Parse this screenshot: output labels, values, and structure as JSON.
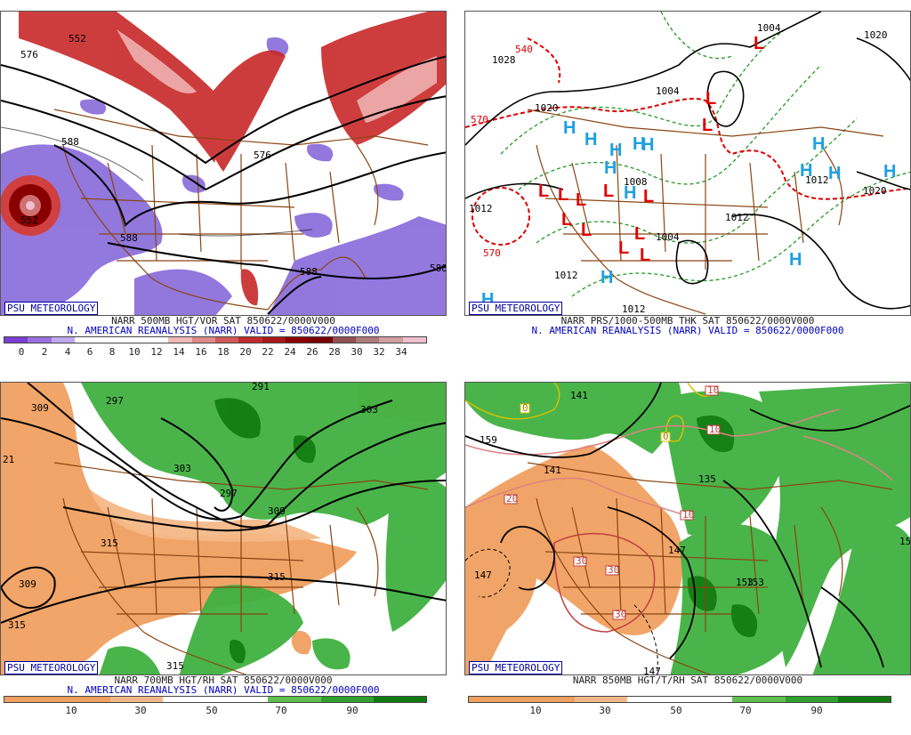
{
  "panels": [
    {
      "badge": "PSU METEOROLOGY",
      "line1": "NARR 500MB HGT/VOR SAT 850622/0000V000",
      "line2": "N. AMERICAN REANALYSIS (NARR) VALID = 850622/0000F000",
      "ticks": [
        "0",
        "2",
        "4",
        "6",
        "8",
        "10",
        "12",
        "14",
        "16",
        "18",
        "20",
        "22",
        "24",
        "26",
        "28",
        "30",
        "32",
        "34"
      ],
      "contour_labels": [
        "552",
        "576",
        "588",
        "588",
        "588",
        "588",
        "576",
        "552",
        "588"
      ]
    },
    {
      "badge": "PSU METEOROLOGY",
      "line1": "NARR PRS/1000-500MB THK SAT 850622/0000V000",
      "line2": "N. AMERICAN REANALYSIS (NARR) VALID = 850622/0000F000",
      "ticks": [],
      "contour_labels": [
        "1004",
        "1012",
        "1028",
        "1020",
        "1012",
        "1008",
        "1004",
        "1012",
        "1012",
        "1020",
        "1004",
        "1012",
        "1020",
        "570",
        "570",
        "540"
      ],
      "high_symbol": "H",
      "low_symbol": "L"
    },
    {
      "badge": "PSU METEOROLOGY",
      "line1": "NARR 700MB HGT/RH SAT 850622/0000V000",
      "line2": "N. AMERICAN REANALYSIS (NARR) VALID = 850622/0000F000",
      "ticks": [
        "10",
        "30",
        "50",
        "70",
        "90"
      ],
      "contour_labels": [
        "309",
        "297",
        "291",
        "303",
        "303",
        "297",
        "309",
        "315",
        "309",
        "315",
        "315",
        "21",
        "315"
      ]
    },
    {
      "badge": "PSU METEOROLOGY",
      "line1": "NARR 850MB HGT/T/RH SAT 850622/0000V000",
      "line2": "",
      "ticks": [
        "10",
        "30",
        "50",
        "70",
        "90"
      ],
      "contour_labels": [
        "141",
        "159",
        "153",
        "135",
        "147",
        "147",
        "153",
        "147",
        "141",
        "15"
      ],
      "temp_labels": [
        "0",
        "0",
        "10",
        "10",
        "20",
        "30",
        "30",
        "30",
        "10"
      ]
    }
  ],
  "colors": {
    "vor_scale": [
      "#7a3fd0",
      "#9a70e0",
      "#c0a8ef",
      "#ffffff",
      "#ffffff",
      "#ffffff",
      "#ffffff",
      "#f0b8b8",
      "#e08a8a",
      "#d05a5a",
      "#c02a2a",
      "#a81818",
      "#8a0000",
      "#7a0000",
      "#905050",
      "#b07a7a",
      "#d0a0a0",
      "#f0c0d0"
    ],
    "rh_scale": [
      "#f0a060",
      "#f4b888",
      "#ffffff",
      "#ffffff",
      "#60c050",
      "#30a030",
      "#107a10"
    ],
    "h_color": "#1ea0e0",
    "l_color": "#e00000",
    "map_border": "#8b4513"
  }
}
